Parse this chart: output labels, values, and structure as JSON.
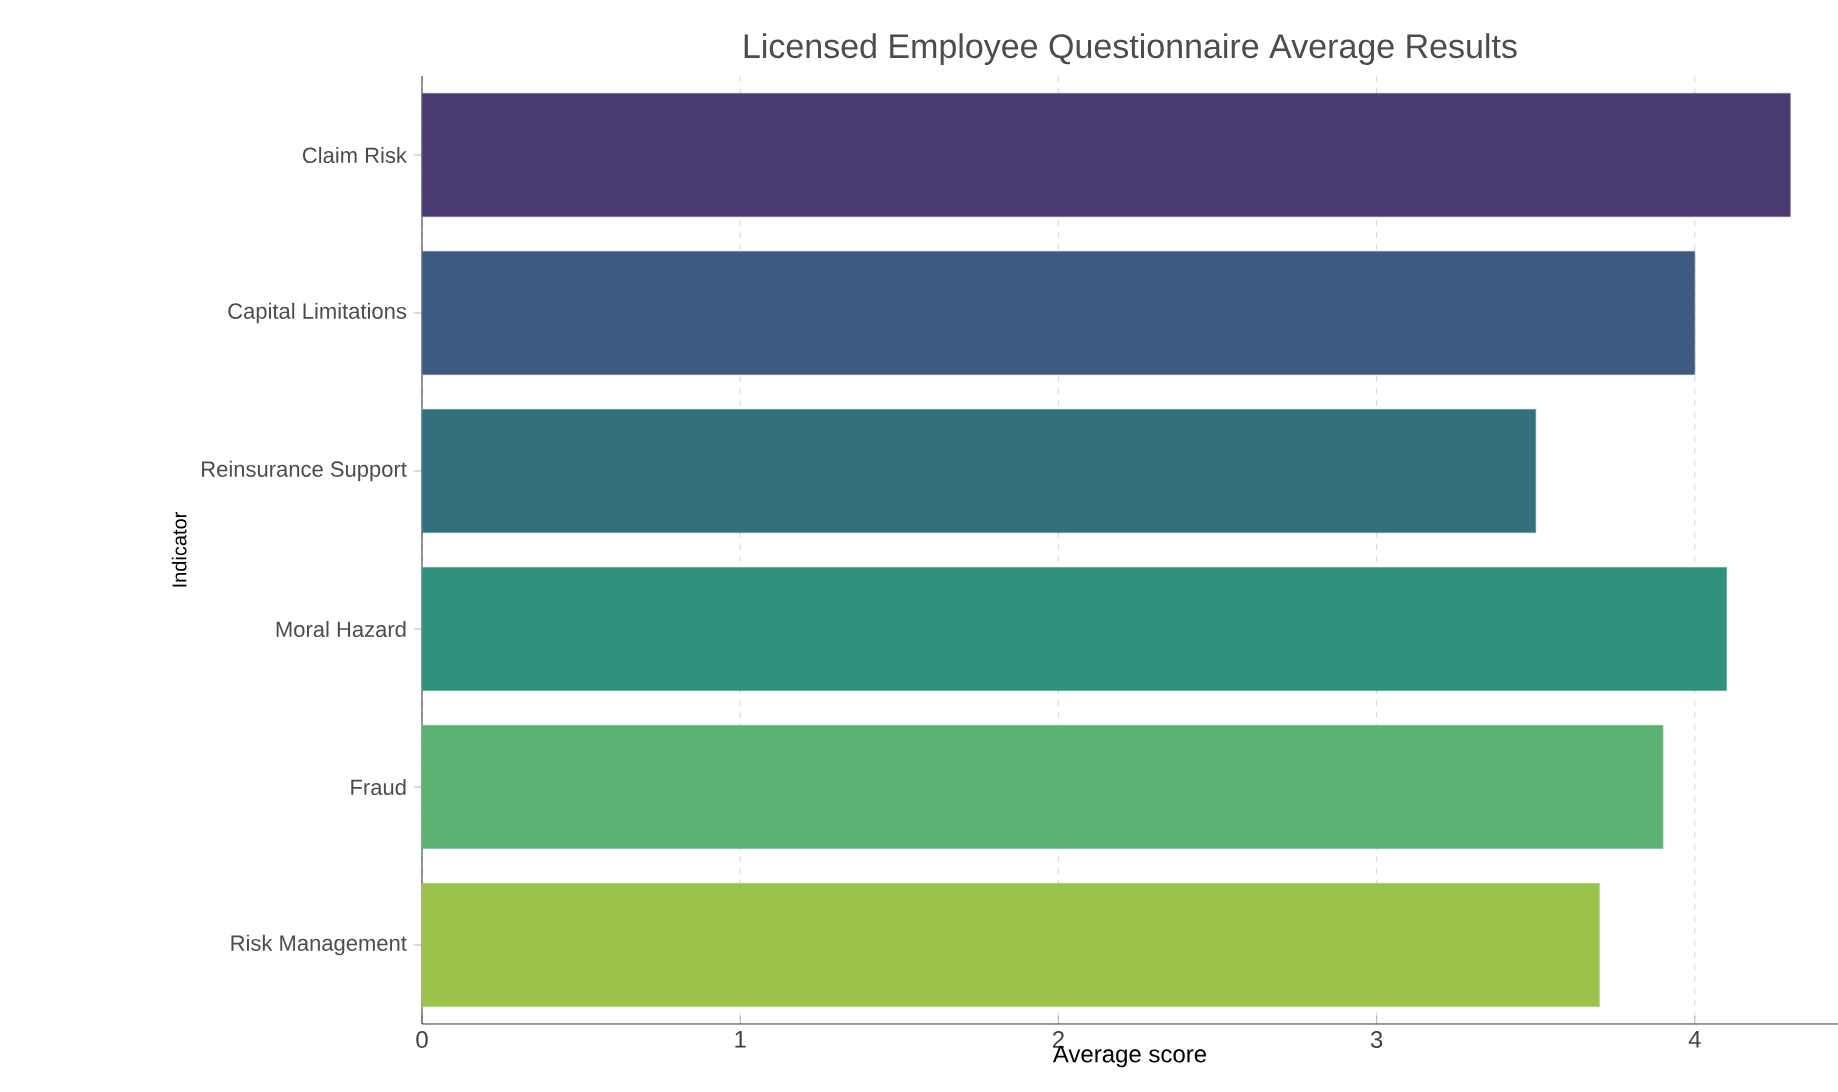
{
  "chart_data": {
    "type": "bar",
    "orientation": "horizontal",
    "title": "Licensed Employee Questionnaire Average Results",
    "xlabel": "Average score",
    "ylabel": "Indicator",
    "categories": [
      "Claim Risk",
      "Capital Limitations",
      "Reinsurance Support",
      "Moral Hazard",
      "Fraud",
      "Risk Management"
    ],
    "values": [
      4.3,
      4.0,
      3.5,
      4.1,
      3.9,
      3.7
    ],
    "colors": [
      "#4a3a72",
      "#3f5a80",
      "#32717c",
      "#30917d",
      "#5bb073",
      "#9bc34c"
    ],
    "xlim": [
      0,
      4.45
    ],
    "xticks": [
      0,
      1,
      2,
      3,
      4
    ],
    "grid": "x"
  }
}
